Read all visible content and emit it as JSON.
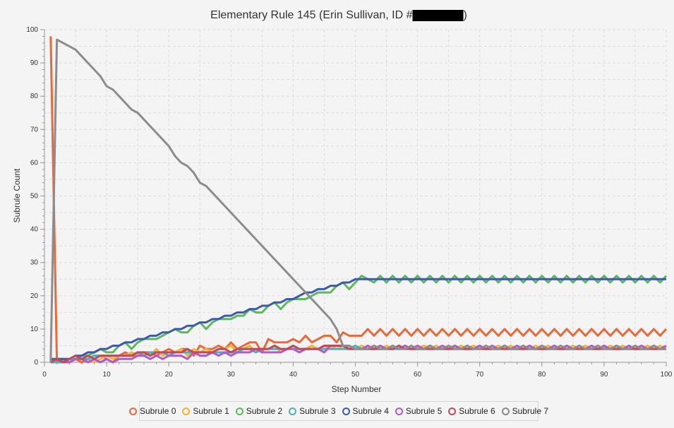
{
  "chart_data": {
    "type": "line",
    "title_prefix": "Elementary Rule 145 (Erin Sullivan, ID #",
    "title_suffix": ")",
    "xlabel": "Step Number",
    "ylabel": "Subrule Count",
    "xlim": [
      0,
      100
    ],
    "ylim": [
      0,
      100
    ],
    "xticks": [
      0,
      10,
      20,
      30,
      40,
      50,
      60,
      70,
      80,
      90,
      100
    ],
    "yticks": [
      0,
      10,
      20,
      30,
      40,
      50,
      60,
      70,
      80,
      90,
      100
    ],
    "grid": true,
    "legend_placement": "bottom",
    "x": [
      1,
      2,
      3,
      4,
      5,
      6,
      7,
      8,
      9,
      10,
      11,
      12,
      13,
      14,
      15,
      16,
      17,
      18,
      19,
      20,
      21,
      22,
      23,
      24,
      25,
      26,
      27,
      28,
      29,
      30,
      31,
      32,
      33,
      34,
      35,
      36,
      37,
      38,
      39,
      40,
      41,
      42,
      43,
      44,
      45,
      46,
      47,
      48,
      49,
      50,
      51,
      52,
      53,
      54,
      55,
      56,
      57,
      58,
      59,
      60,
      61,
      62,
      63,
      64,
      65,
      66,
      67,
      68,
      69,
      70,
      71,
      72,
      73,
      74,
      75,
      76,
      77,
      78,
      79,
      80,
      81,
      82,
      83,
      84,
      85,
      86,
      87,
      88,
      89,
      90,
      91,
      92,
      93,
      94,
      95,
      96,
      97,
      98,
      99,
      100
    ],
    "series": [
      {
        "name": "Subrule 0",
        "color": "#e8693a",
        "values": [
          98,
          0,
          1,
          0,
          1,
          0,
          1,
          2,
          2,
          1,
          0,
          2,
          3,
          2,
          2,
          3,
          3,
          2,
          3,
          4,
          3,
          4,
          4,
          2,
          5,
          4,
          4,
          5,
          4,
          6,
          4,
          5,
          6,
          6,
          3,
          7,
          6,
          6,
          6,
          7,
          6,
          8,
          6,
          7,
          8,
          8,
          6,
          9,
          8,
          8,
          8,
          10,
          8,
          10,
          8,
          10,
          8,
          10,
          8,
          10,
          8,
          10,
          8,
          10,
          8,
          10,
          8,
          10,
          8,
          10,
          8,
          10,
          8,
          10,
          8,
          10,
          8,
          10,
          8,
          10,
          8,
          10,
          8,
          10,
          8,
          10,
          8,
          10,
          8,
          10,
          8,
          10,
          8,
          10,
          8,
          10,
          8,
          10,
          8,
          10
        ]
      },
      {
        "name": "Subrule 1",
        "color": "#f0b43a",
        "values": [
          0,
          1,
          0,
          1,
          1,
          1,
          1,
          0,
          1,
          2,
          1,
          2,
          2,
          3,
          2,
          3,
          2,
          4,
          2,
          3,
          3,
          4,
          2,
          4,
          3,
          4,
          3,
          4,
          4,
          5,
          3,
          4,
          5,
          3,
          4,
          4,
          5,
          3,
          4,
          5,
          4,
          4,
          5,
          4,
          5,
          4,
          5,
          4,
          5,
          4,
          5,
          4,
          5,
          4,
          5,
          4,
          5,
          4,
          5,
          4,
          5,
          4,
          5,
          4,
          5,
          4,
          5,
          4,
          5,
          4,
          5,
          4,
          5,
          4,
          5,
          4,
          5,
          4,
          5,
          4,
          5,
          4,
          5,
          4,
          5,
          4,
          5,
          4,
          5,
          4,
          5,
          4,
          5,
          4,
          5,
          4,
          5,
          4,
          5,
          4
        ]
      },
      {
        "name": "Subrule 2",
        "color": "#5cb85c",
        "values": [
          0,
          1,
          1,
          0,
          1,
          2,
          2,
          3,
          4,
          3,
          3,
          5,
          6,
          4,
          6,
          7,
          7,
          7,
          8,
          9,
          10,
          9,
          9,
          11,
          12,
          10,
          12,
          13,
          13,
          13,
          14,
          14,
          16,
          15,
          15,
          17,
          18,
          16,
          18,
          19,
          19,
          19,
          20,
          21,
          21,
          21,
          23,
          24,
          22,
          24,
          26,
          25,
          24,
          26,
          24,
          26,
          24,
          26,
          24,
          26,
          24,
          26,
          24,
          26,
          24,
          26,
          24,
          26,
          24,
          26,
          24,
          26,
          24,
          26,
          24,
          26,
          24,
          26,
          24,
          26,
          24,
          26,
          24,
          26,
          24,
          26,
          24,
          26,
          24,
          26,
          24,
          26,
          24,
          26,
          24,
          26,
          24,
          26,
          24,
          26
        ]
      },
      {
        "name": "Subrule 3",
        "color": "#4ab0c0",
        "values": [
          0,
          0,
          0,
          1,
          1,
          1,
          1,
          2,
          2,
          2,
          2,
          2,
          2,
          2,
          3,
          2,
          3,
          3,
          3,
          2,
          3,
          3,
          3,
          3,
          3,
          3,
          3,
          3,
          3,
          3,
          3,
          4,
          4,
          3,
          4,
          4,
          4,
          4,
          4,
          4,
          4,
          4,
          4,
          4,
          4,
          4,
          4,
          4,
          4,
          5,
          4,
          4,
          4,
          5,
          4,
          4,
          4,
          5,
          4,
          4,
          4,
          5,
          4,
          4,
          4,
          5,
          4,
          4,
          4,
          5,
          4,
          4,
          4,
          5,
          4,
          4,
          4,
          5,
          4,
          4,
          4,
          5,
          4,
          4,
          4,
          5,
          4,
          4,
          4,
          5,
          4,
          4,
          4,
          5,
          4,
          4,
          4,
          5,
          4,
          4
        ]
      },
      {
        "name": "Subrule 4",
        "color": "#3f5aa8",
        "values": [
          1,
          1,
          1,
          1,
          2,
          2,
          3,
          3,
          4,
          4,
          5,
          5,
          6,
          6,
          7,
          7,
          8,
          8,
          9,
          9,
          10,
          10,
          11,
          11,
          12,
          12,
          13,
          13,
          14,
          14,
          15,
          15,
          16,
          16,
          17,
          17,
          18,
          18,
          19,
          19,
          20,
          21,
          21,
          22,
          22,
          23,
          23,
          24,
          24,
          25,
          25,
          25,
          25,
          25,
          25,
          25,
          25,
          25,
          25,
          25,
          25,
          25,
          25,
          25,
          25,
          25,
          25,
          25,
          25,
          25,
          25,
          25,
          25,
          25,
          25,
          25,
          25,
          25,
          25,
          25,
          25,
          25,
          25,
          25,
          25,
          25,
          25,
          25,
          25,
          25,
          25,
          25,
          25,
          25,
          25,
          25,
          25,
          25,
          25,
          25
        ]
      },
      {
        "name": "Subrule 5",
        "color": "#b05cc8",
        "values": [
          0,
          1,
          0,
          0,
          1,
          1,
          0,
          1,
          0,
          1,
          0,
          1,
          1,
          1,
          2,
          2,
          1,
          2,
          1,
          2,
          2,
          2,
          1,
          3,
          2,
          2,
          3,
          2,
          3,
          2,
          3,
          3,
          3,
          4,
          3,
          3,
          3,
          3,
          4,
          4,
          3,
          4,
          4,
          4,
          3,
          5,
          5,
          5,
          4,
          4,
          4,
          5,
          4,
          5,
          4,
          5,
          4,
          5,
          4,
          5,
          4,
          5,
          4,
          5,
          4,
          5,
          4,
          5,
          4,
          5,
          4,
          5,
          4,
          5,
          4,
          5,
          4,
          5,
          4,
          5,
          4,
          5,
          4,
          5,
          4,
          5,
          4,
          5,
          4,
          5,
          4,
          5,
          4,
          5,
          4,
          5,
          4,
          5,
          4,
          5
        ]
      },
      {
        "name": "Subrule 6",
        "color": "#c04a5a",
        "values": [
          0,
          1,
          0,
          1,
          2,
          1,
          2,
          1,
          2,
          2,
          2,
          2,
          2,
          2,
          3,
          3,
          2,
          3,
          3,
          3,
          3,
          3,
          4,
          3,
          3,
          3,
          3,
          4,
          4,
          3,
          4,
          4,
          4,
          4,
          4,
          4,
          5,
          4,
          4,
          5,
          4,
          4,
          4,
          4,
          5,
          5,
          5,
          5,
          4,
          4,
          4,
          4,
          4,
          4,
          4,
          4,
          5,
          4,
          4,
          4,
          4,
          4,
          4,
          4,
          4,
          4,
          4,
          4,
          4,
          4,
          4,
          4,
          4,
          4,
          4,
          4,
          4,
          4,
          4,
          4,
          4,
          4,
          4,
          4,
          4,
          4,
          4,
          4,
          4,
          4,
          4,
          4,
          4,
          4,
          4,
          4,
          4,
          4,
          4,
          4
        ]
      },
      {
        "name": "Subrule 7",
        "color": "#8c8c8c",
        "values": [
          0,
          97,
          96,
          95,
          94,
          92,
          90,
          88,
          86,
          83,
          82,
          80,
          78,
          76,
          75,
          73,
          71,
          69,
          67,
          65,
          62,
          60,
          59,
          57,
          54,
          53,
          51,
          49,
          47,
          45,
          43,
          41,
          39,
          37,
          35,
          33,
          31,
          29,
          27,
          25,
          23,
          21,
          19,
          17,
          15,
          13,
          10,
          5,
          5,
          4,
          4,
          4,
          5,
          4,
          4,
          5,
          4,
          4,
          5,
          4,
          4,
          5,
          4,
          4,
          5,
          4,
          4,
          5,
          4,
          4,
          5,
          4,
          4,
          5,
          4,
          4,
          5,
          4,
          4,
          5,
          4,
          4,
          5,
          4,
          4,
          5,
          4,
          4,
          5,
          4,
          4,
          5,
          4,
          4,
          5,
          4,
          4,
          5,
          4,
          4
        ]
      }
    ]
  }
}
